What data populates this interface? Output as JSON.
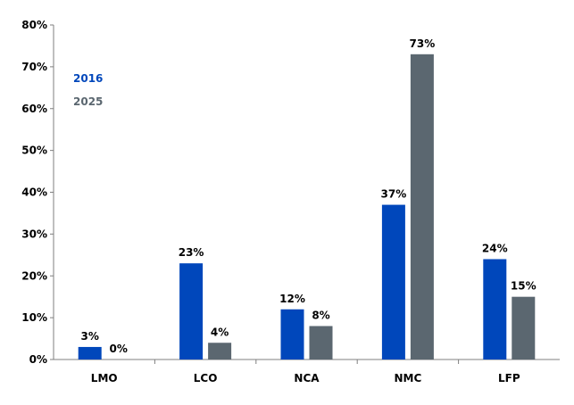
{
  "chart_data": {
    "type": "bar",
    "categories": [
      "LMO",
      "LCO",
      "NCA",
      "NMC",
      "LFP"
    ],
    "series": [
      {
        "name": "2016",
        "values": [
          3,
          23,
          12,
          37,
          24
        ],
        "color": "#0047BB"
      },
      {
        "name": "2025",
        "values": [
          0,
          4,
          8,
          73,
          15
        ],
        "color": "#5B6770"
      }
    ],
    "data_labels": [
      [
        "3%",
        "23%",
        "12%",
        "37%",
        "24%"
      ],
      [
        "0%",
        "4%",
        "8%",
        "73%",
        "15%"
      ]
    ],
    "yticks": [
      "0%",
      "10%",
      "20%",
      "30%",
      "40%",
      "50%",
      "60%",
      "70%",
      "80%"
    ],
    "ylim": [
      0,
      80
    ],
    "unit": "%",
    "grid": false,
    "legend_position": "top-left"
  }
}
